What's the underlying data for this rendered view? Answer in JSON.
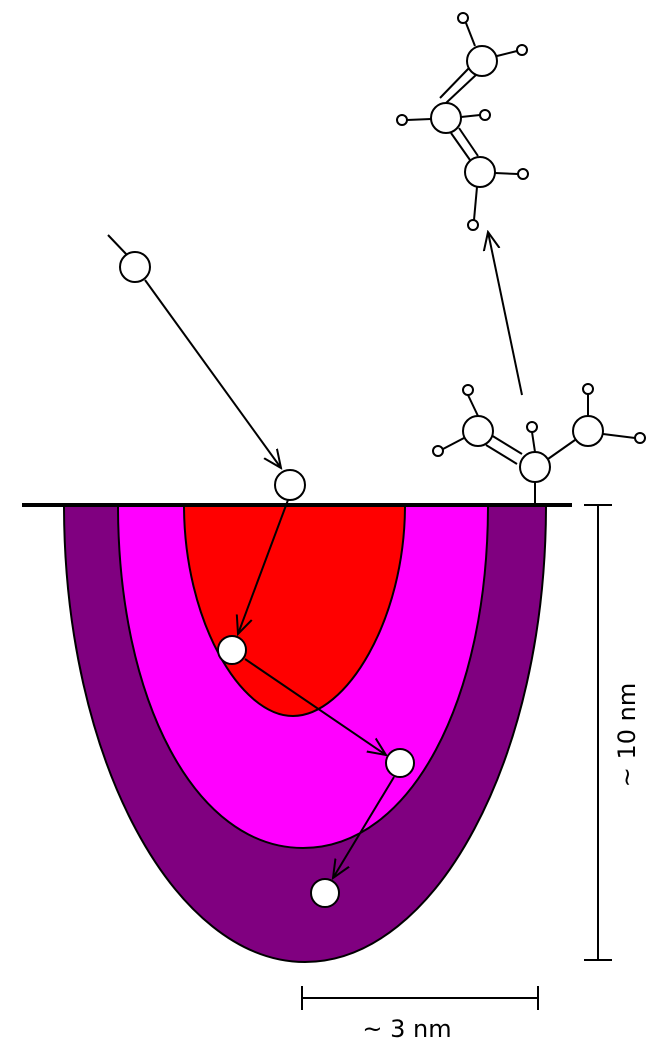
{
  "labels": {
    "depth": "~ 10 nm",
    "width": "~ 3 nm"
  }
}
